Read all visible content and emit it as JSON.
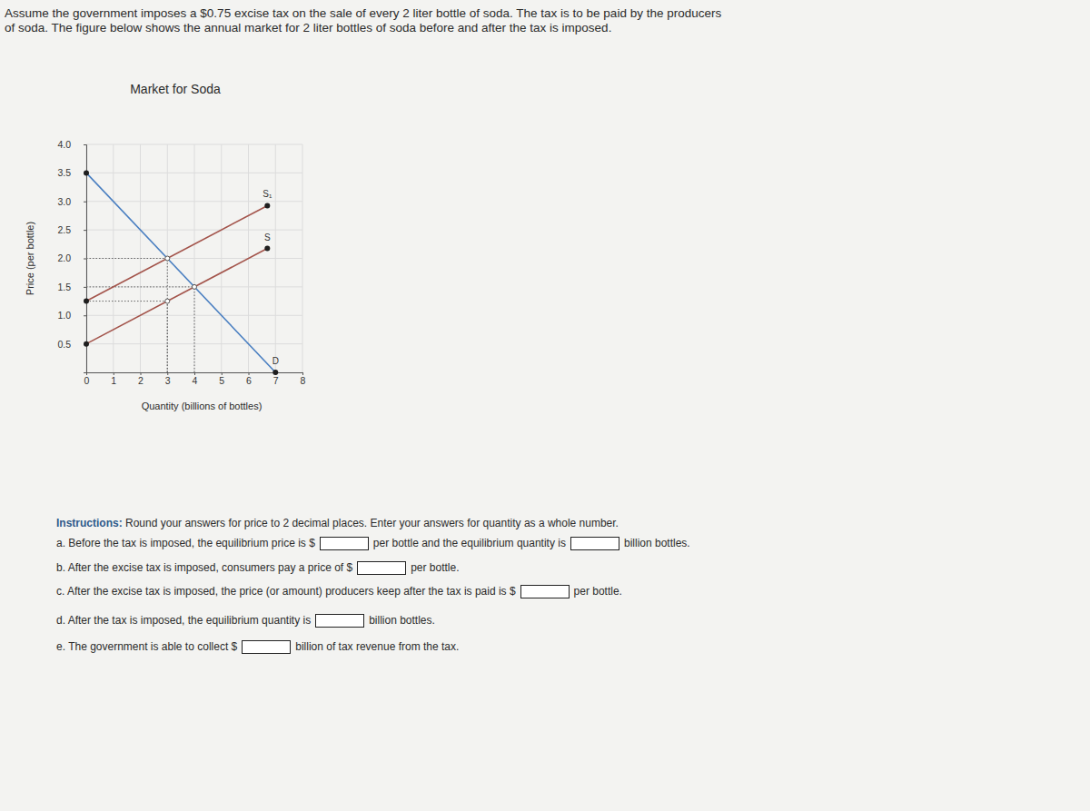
{
  "problem": [
    "Assume the government imposes a $0.75 excise tax on the sale of every 2 liter bottle of soda. The tax is to be paid by the producers",
    "of soda. The figure below shows the annual market for 2 liter bottles of soda before and after the tax is imposed."
  ],
  "chart_data": {
    "type": "line",
    "title": "Market for Soda",
    "x_label": "Quantity (billions of bottles)",
    "y_label": "Price (per bottle)",
    "xlim": [
      0,
      8
    ],
    "ylim": [
      0,
      4
    ],
    "xticks": [
      0,
      1,
      2,
      3,
      4,
      5,
      6,
      7,
      8
    ],
    "yticks": [
      0.5,
      {
        "value": 1,
        "label": "1.0"
      },
      1.5,
      {
        "value": 2,
        "label": "2.0"
      },
      2.5,
      {
        "value": 3,
        "label": "3.0"
      },
      3.5,
      {
        "value": 4,
        "label": "4.0"
      }
    ],
    "grid": true,
    "series": [
      {
        "name": "S₁",
        "color": "#a3544b",
        "marker": "circle",
        "x": [
          0,
          6.7
        ],
        "values": [
          1.25,
          2.925
        ]
      },
      {
        "name": "S",
        "color": "#a3544b",
        "marker": "circle",
        "x": [
          0,
          6.7
        ],
        "values": [
          0.5,
          2.175
        ]
      },
      {
        "name": "D",
        "color": "#4a7fc1",
        "marker": "circle",
        "x": [
          0,
          7
        ],
        "values": [
          3.5,
          0
        ]
      }
    ],
    "guides": [
      {
        "x": 4,
        "y": 1.5
      },
      {
        "x": 3,
        "y": 2
      },
      {
        "x": 3,
        "y": 1.25
      }
    ]
  },
  "instructions": {
    "label": "Instructions:",
    "text": "Round your answers for price to 2 decimal places. Enter your answers for quantity as a whole number."
  },
  "questions": [
    {
      "parts": [
        "a. Before the tax is imposed, the equilibrium price is $",
        "per bottle and the equilibrium quantity is",
        "billion bottles."
      ]
    },
    {
      "parts": [
        "b. After the excise tax is imposed, consumers pay a price of $",
        "per bottle."
      ]
    },
    {
      "parts": [
        "c. After the excise tax is imposed, the price (or amount) producers keep after the tax is paid is $",
        "per bottle."
      ]
    },
    {
      "parts": [
        "d. After the tax is imposed, the equilibrium quantity is",
        "billion bottles."
      ]
    },
    {
      "parts": [
        "e. The government is able to collect $",
        "billion of tax revenue from the tax."
      ]
    }
  ]
}
